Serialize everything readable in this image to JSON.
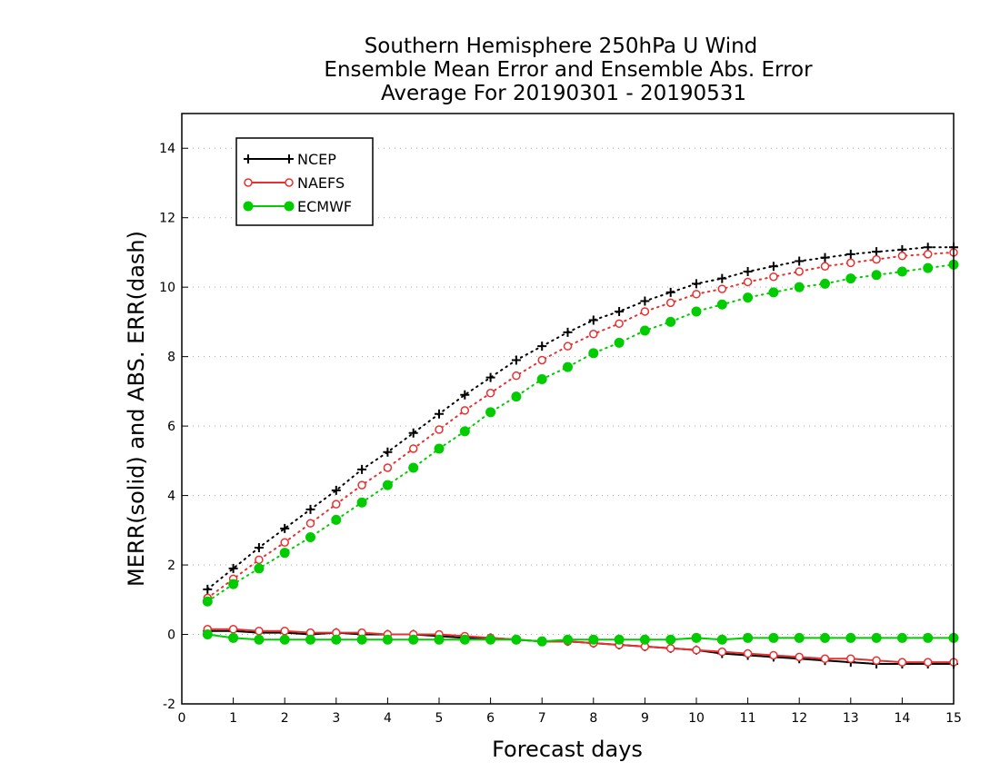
{
  "chart_data": {
    "type": "line",
    "title": [
      "Southern Hemisphere 250hPa U Wind",
      "Ensemble Mean Error and Ensemble Abs. Error",
      "Average For 20190301 - 20190531"
    ],
    "xlabel": "Forecast days",
    "ylabel": "MERR(solid) and ABS. ERR(dash)",
    "xlim": [
      0,
      15
    ],
    "ylim": [
      -2,
      15
    ],
    "x_ticks": [
      "0",
      "1",
      "2",
      "3",
      "4",
      "5",
      "6",
      "7",
      "8",
      "9",
      "10",
      "11",
      "12",
      "13",
      "14",
      "15"
    ],
    "y_ticks": [
      "-2",
      "0",
      "2",
      "4",
      "6",
      "8",
      "10",
      "12",
      "14"
    ],
    "grid": true,
    "legend_position": "top-left",
    "x": [
      0.5,
      1,
      1.5,
      2,
      2.5,
      3,
      3.5,
      4,
      4.5,
      5,
      5.5,
      6,
      6.5,
      7,
      7.5,
      8,
      8.5,
      9,
      9.5,
      10,
      10.5,
      11,
      11.5,
      12,
      12.5,
      13,
      13.5,
      14,
      14.5,
      15
    ],
    "series": [
      {
        "name": "NCEP",
        "color": "#000000",
        "marker": "plus",
        "abs_err": [
          1.3,
          1.9,
          2.5,
          3.05,
          3.6,
          4.15,
          4.75,
          5.25,
          5.8,
          6.35,
          6.9,
          7.4,
          7.9,
          8.3,
          8.7,
          9.05,
          9.3,
          9.6,
          9.85,
          10.1,
          10.25,
          10.45,
          10.6,
          10.75,
          10.85,
          10.95,
          11.02,
          11.08,
          11.15,
          11.15
        ],
        "mean_err": [
          0.1,
          0.1,
          0.05,
          0.05,
          0.0,
          0.05,
          0.0,
          0.0,
          0.0,
          -0.05,
          -0.1,
          -0.1,
          -0.15,
          -0.2,
          -0.2,
          -0.25,
          -0.3,
          -0.35,
          -0.4,
          -0.45,
          -0.55,
          -0.6,
          -0.65,
          -0.7,
          -0.75,
          -0.8,
          -0.85,
          -0.85,
          -0.85,
          -0.85
        ]
      },
      {
        "name": "NAEFS",
        "color": "#e83030",
        "marker": "open-circle",
        "abs_err": [
          1.05,
          1.6,
          2.15,
          2.65,
          3.2,
          3.75,
          4.3,
          4.8,
          5.35,
          5.9,
          6.45,
          6.95,
          7.45,
          7.9,
          8.3,
          8.65,
          8.95,
          9.3,
          9.55,
          9.8,
          9.95,
          10.15,
          10.3,
          10.45,
          10.6,
          10.7,
          10.8,
          10.9,
          10.95,
          11.0
        ],
        "mean_err": [
          0.15,
          0.15,
          0.1,
          0.1,
          0.05,
          0.05,
          0.05,
          0.0,
          0.0,
          0.0,
          -0.05,
          -0.1,
          -0.15,
          -0.2,
          -0.2,
          -0.25,
          -0.3,
          -0.35,
          -0.4,
          -0.45,
          -0.5,
          -0.55,
          -0.6,
          -0.65,
          -0.7,
          -0.7,
          -0.75,
          -0.8,
          -0.8,
          -0.8
        ]
      },
      {
        "name": "ECMWF",
        "color": "#00cc00",
        "marker": "filled-circle",
        "abs_err": [
          0.95,
          1.45,
          1.9,
          2.35,
          2.8,
          3.3,
          3.8,
          4.3,
          4.8,
          5.35,
          5.85,
          6.4,
          6.85,
          7.35,
          7.7,
          8.1,
          8.4,
          8.75,
          9.0,
          9.3,
          9.5,
          9.7,
          9.85,
          10.0,
          10.1,
          10.25,
          10.35,
          10.45,
          10.55,
          10.65
        ],
        "mean_err": [
          0.0,
          -0.1,
          -0.15,
          -0.15,
          -0.15,
          -0.15,
          -0.15,
          -0.15,
          -0.15,
          -0.15,
          -0.15,
          -0.15,
          -0.15,
          -0.2,
          -0.15,
          -0.15,
          -0.15,
          -0.15,
          -0.15,
          -0.1,
          -0.15,
          -0.1,
          -0.1,
          -0.1,
          -0.1,
          -0.1,
          -0.1,
          -0.1,
          -0.1,
          -0.1
        ]
      }
    ]
  }
}
